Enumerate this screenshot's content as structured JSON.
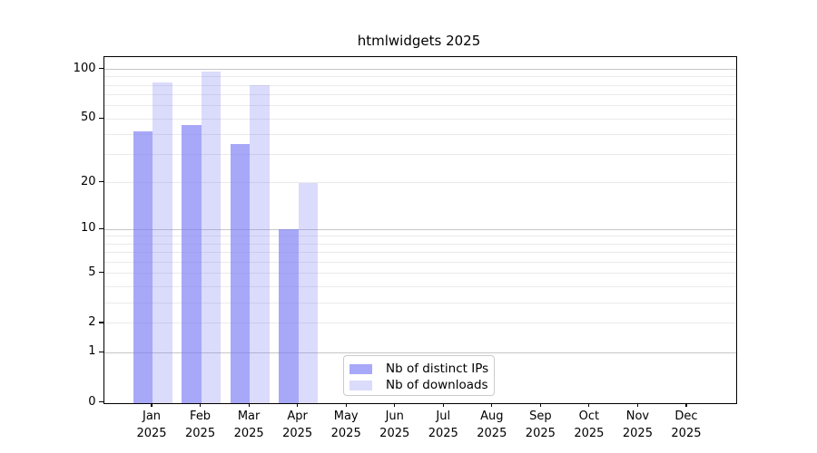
{
  "title": "htmlwidgets 2025",
  "colors": {
    "bar_base": "121,121,245",
    "ips_fill": "rgba(121,121,245,0.65)",
    "downloads_fill": "rgba(121,121,245,0.27)",
    "grid_minor": "#eaeaea",
    "grid_major": "#c6c6c6",
    "spine": "#000000"
  },
  "legend": {
    "entries": [
      {
        "label": "Nb of distinct IPs",
        "color": "rgba(121,121,245,0.65)"
      },
      {
        "label": "Nb of downloads",
        "color": "rgba(121,121,245,0.27)"
      }
    ]
  },
  "chart_data": {
    "type": "bar",
    "title": "htmlwidgets 2025",
    "categories": [
      {
        "month": "Jan",
        "year": "2025"
      },
      {
        "month": "Feb",
        "year": "2025"
      },
      {
        "month": "Mar",
        "year": "2025"
      },
      {
        "month": "Apr",
        "year": "2025"
      },
      {
        "month": "May",
        "year": "2025"
      },
      {
        "month": "Jun",
        "year": "2025"
      },
      {
        "month": "Jul",
        "year": "2025"
      },
      {
        "month": "Aug",
        "year": "2025"
      },
      {
        "month": "Sep",
        "year": "2025"
      },
      {
        "month": "Oct",
        "year": "2025"
      },
      {
        "month": "Nov",
        "year": "2025"
      },
      {
        "month": "Dec",
        "year": "2025"
      }
    ],
    "series": [
      {
        "name": "Nb of distinct IPs",
        "values": [
          42,
          46,
          35,
          10,
          null,
          null,
          null,
          null,
          null,
          null,
          null,
          null
        ]
      },
      {
        "name": "Nb of downloads",
        "values": [
          83,
          97,
          80,
          20,
          null,
          null,
          null,
          null,
          null,
          null,
          null,
          null
        ]
      }
    ],
    "yscale": "log1p",
    "ylim": [
      0,
      120
    ],
    "y_ticks": [
      0,
      1,
      2,
      5,
      10,
      20,
      50,
      100
    ],
    "y_grid_major": [
      1,
      10,
      100
    ],
    "y_grid_minor": [
      2,
      3,
      4,
      5,
      6,
      7,
      8,
      9,
      20,
      30,
      40,
      50,
      60,
      70,
      80,
      90
    ],
    "grid": "horizontal",
    "legend_position": "inside-bottom-center",
    "xlabel": "",
    "ylabel": ""
  }
}
